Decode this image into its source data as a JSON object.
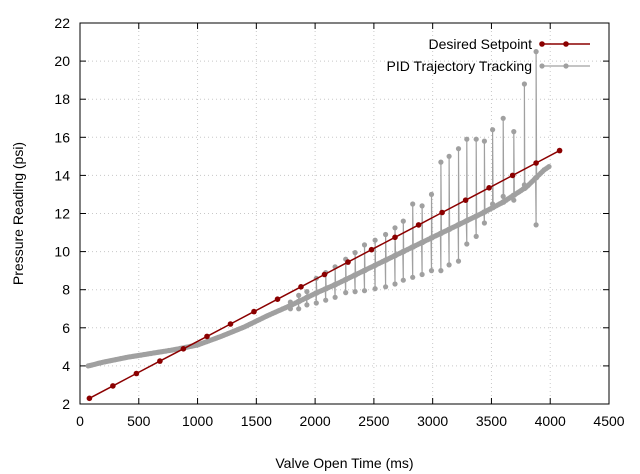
{
  "chart_data": {
    "type": "line",
    "xlabel": "Valve Open Time (ms)",
    "ylabel": "Pressure Reading (psi)",
    "xlim": [
      0,
      4500
    ],
    "ylim": [
      2,
      22
    ],
    "x_ticks": [
      0,
      500,
      1000,
      1500,
      2000,
      2500,
      3000,
      3500,
      4000,
      4500
    ],
    "y_ticks": [
      2,
      4,
      6,
      8,
      10,
      12,
      14,
      16,
      18,
      20,
      22
    ],
    "grid": true,
    "legend_position": "top-right",
    "series": [
      {
        "name": "Desired Setpoint",
        "color": "#8b0000",
        "points": [
          [
            80,
            2.3
          ],
          [
            280,
            2.95
          ],
          [
            480,
            3.6
          ],
          [
            680,
            4.25
          ],
          [
            880,
            4.9
          ],
          [
            1080,
            5.55
          ],
          [
            1280,
            6.2
          ],
          [
            1480,
            6.85
          ],
          [
            1680,
            7.5
          ],
          [
            1880,
            8.15
          ],
          [
            2080,
            8.8
          ],
          [
            2280,
            9.45
          ],
          [
            2480,
            10.1
          ],
          [
            2680,
            10.75
          ],
          [
            2880,
            11.4
          ],
          [
            3080,
            12.05
          ],
          [
            3280,
            12.7
          ],
          [
            3480,
            13.35
          ],
          [
            3680,
            14.0
          ],
          [
            3880,
            14.65
          ],
          [
            4080,
            15.3
          ]
        ]
      },
      {
        "name": "PID Trajectory Tracking",
        "color": "#a0a0a0",
        "baseline": [
          [
            70,
            4.0
          ],
          [
            200,
            4.2
          ],
          [
            400,
            4.45
          ],
          [
            600,
            4.65
          ],
          [
            800,
            4.85
          ],
          [
            1000,
            5.1
          ],
          [
            1200,
            5.55
          ],
          [
            1400,
            6.05
          ],
          [
            1600,
            6.65
          ],
          [
            1800,
            7.2
          ],
          [
            2000,
            7.8
          ],
          [
            2200,
            8.35
          ],
          [
            2400,
            8.95
          ],
          [
            2600,
            9.55
          ],
          [
            2800,
            10.15
          ],
          [
            3000,
            10.75
          ],
          [
            3200,
            11.35
          ],
          [
            3400,
            11.95
          ],
          [
            3600,
            12.6
          ],
          [
            3800,
            13.4
          ],
          [
            3950,
            14.3
          ],
          [
            4000,
            14.5
          ]
        ],
        "excursions": [
          [
            1790,
            7.0,
            7.35
          ],
          [
            1860,
            7.0,
            7.7
          ],
          [
            1930,
            7.2,
            7.9
          ],
          [
            2010,
            7.3,
            8.6
          ],
          [
            2090,
            7.45,
            8.9
          ],
          [
            2170,
            7.6,
            9.2
          ],
          [
            2260,
            7.85,
            9.6
          ],
          [
            2340,
            7.9,
            9.95
          ],
          [
            2420,
            7.95,
            10.35
          ],
          [
            2510,
            8.05,
            10.6
          ],
          [
            2600,
            8.15,
            10.9
          ],
          [
            2680,
            8.3,
            11.25
          ],
          [
            2750,
            8.5,
            11.6
          ],
          [
            2830,
            8.65,
            12.5
          ],
          [
            2910,
            8.8,
            12.4
          ],
          [
            2990,
            9.0,
            13.0
          ],
          [
            3070,
            9.0,
            14.7
          ],
          [
            3140,
            9.3,
            15.0
          ],
          [
            3220,
            9.5,
            15.4
          ],
          [
            3290,
            10.4,
            15.9
          ],
          [
            3370,
            10.8,
            15.9
          ],
          [
            3440,
            11.5,
            15.8
          ],
          [
            3510,
            12.5,
            16.4
          ],
          [
            3600,
            12.9,
            17.0
          ],
          [
            3690,
            12.7,
            16.3
          ],
          [
            3780,
            13.5,
            18.8
          ],
          [
            3880,
            11.4,
            20.5
          ]
        ]
      }
    ]
  }
}
